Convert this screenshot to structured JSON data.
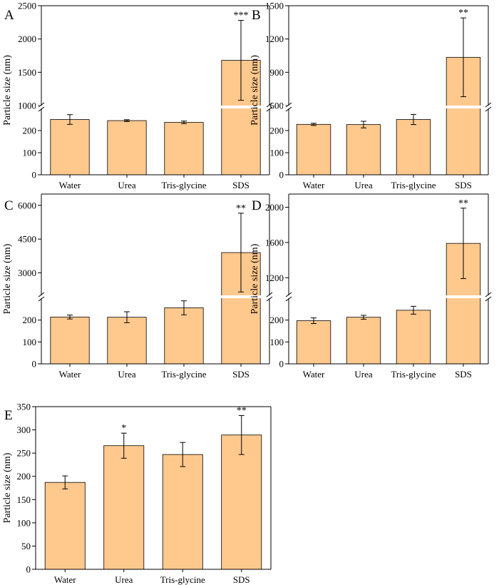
{
  "style": {
    "bar_fill": "#FFC98E",
    "bar_stroke": "#000000",
    "axis_color": "#000000",
    "break_gap_color": "#ffffff"
  },
  "chart_data": [
    {
      "panel": "A",
      "type": "bar",
      "categories": [
        "Water",
        "Urea",
        "Tris-glycine",
        "SDS"
      ],
      "values": [
        250,
        245,
        237,
        1680
      ],
      "errors": [
        22,
        4,
        6,
        600
      ],
      "significance": [
        "",
        "",
        "",
        "***"
      ],
      "ylabel": "Particle size (nm)",
      "y_break": true,
      "lower_range": [
        0,
        300
      ],
      "upper_range": [
        1000,
        2500
      ],
      "lower_ticks": [
        0,
        100,
        200
      ],
      "upper_ticks": [
        1000,
        1500,
        2000,
        2500
      ]
    },
    {
      "panel": "B",
      "type": "bar",
      "categories": [
        "Water",
        "Urea",
        "Tris-glycine",
        "SDS"
      ],
      "values": [
        228,
        227,
        250,
        1035
      ],
      "errors": [
        5,
        15,
        23,
        355
      ],
      "significance": [
        "",
        "",
        "",
        "**"
      ],
      "ylabel": "Particle size (nm)",
      "y_break": true,
      "lower_range": [
        0,
        300
      ],
      "upper_range": [
        600,
        1500
      ],
      "lower_ticks": [
        0,
        100,
        200
      ],
      "upper_ticks": [
        600,
        900,
        1200,
        1500
      ]
    },
    {
      "panel": "C",
      "type": "bar",
      "categories": [
        "Water",
        "Urea",
        "Tris-glycine",
        "SDS"
      ],
      "values": [
        214,
        213,
        256,
        3900
      ],
      "errors": [
        9,
        25,
        32,
        1750
      ],
      "significance": [
        "",
        "",
        "",
        "**"
      ],
      "ylabel": "Particle size (nm)",
      "y_break": true,
      "lower_range": [
        0,
        300
      ],
      "upper_range": [
        2000,
        6500
      ],
      "lower_ticks": [
        0,
        100,
        200
      ],
      "upper_ticks": [
        3000,
        4500,
        6000
      ]
    },
    {
      "panel": "D",
      "type": "bar",
      "categories": [
        "Water",
        "Urea",
        "Tris-glycine",
        "SDS"
      ],
      "values": [
        197,
        213,
        245,
        1590
      ],
      "errors": [
        13,
        9,
        18,
        400
      ],
      "significance": [
        "",
        "",
        "",
        "**"
      ],
      "ylabel": "Particle size (nm)",
      "y_break": true,
      "lower_range": [
        0,
        300
      ],
      "upper_range": [
        1000,
        2150
      ],
      "lower_ticks": [
        0,
        100,
        200
      ],
      "upper_ticks": [
        1200,
        1600,
        2000
      ]
    },
    {
      "panel": "E",
      "type": "bar",
      "categories": [
        "Water",
        "Urea",
        "Tris-glycine",
        "SDS"
      ],
      "values": [
        187,
        266,
        247,
        289
      ],
      "errors": [
        14,
        27,
        26,
        42
      ],
      "significance": [
        "",
        "*",
        "",
        "**"
      ],
      "ylabel": "Particle size (nm)",
      "y_break": false,
      "ylim": [
        0,
        350
      ],
      "ticks": [
        0,
        50,
        100,
        150,
        200,
        250,
        300,
        350
      ]
    }
  ]
}
